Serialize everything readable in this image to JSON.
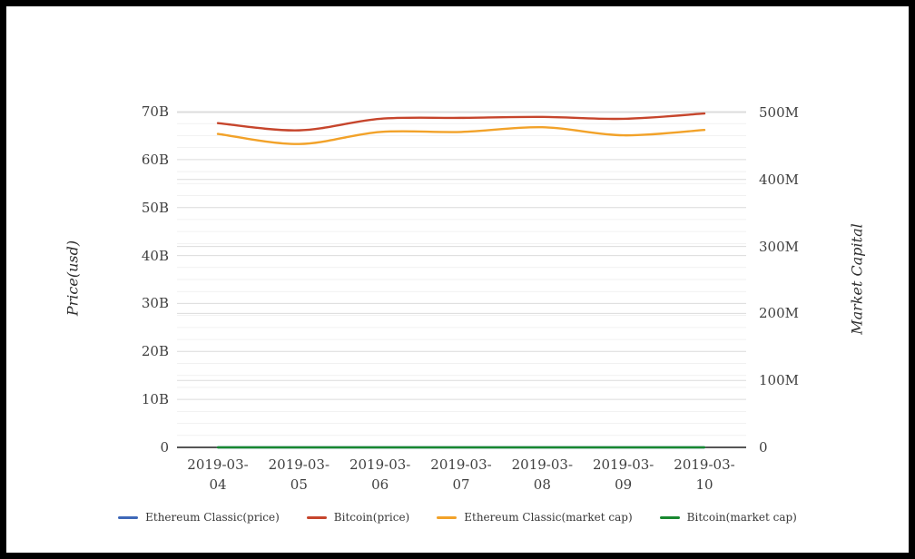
{
  "chart_data": {
    "type": "line",
    "title": "",
    "xlabel": "",
    "ylabel_left": "Price(usd)",
    "ylabel_right": "Market Capital",
    "categories": [
      "2019-03-04",
      "2019-03-05",
      "2019-03-06",
      "2019-03-07",
      "2019-03-08",
      "2019-03-09",
      "2019-03-10"
    ],
    "axes": {
      "left": {
        "title": "Price(usd)",
        "unit": "B",
        "max": 70,
        "ticks": [
          0,
          10,
          20,
          30,
          40,
          50,
          60,
          70
        ],
        "tick_labels": [
          "0",
          "10B",
          "20B",
          "30B",
          "40B",
          "50B",
          "60B",
          "70B"
        ],
        "minor_step": 2.5
      },
      "right": {
        "title": "Market Capital",
        "unit": "M",
        "max": 500,
        "ticks": [
          0,
          100,
          200,
          300,
          400,
          500
        ],
        "tick_labels": [
          "0",
          "100M",
          "200M",
          "300M",
          "400M",
          "500M"
        ]
      }
    },
    "series": [
      {
        "name": "Ethereum Classic(price)",
        "color": "#3e68b8",
        "axis": "left",
        "values": [
          0,
          0,
          0,
          0,
          0,
          0,
          0
        ]
      },
      {
        "name": "Bitcoin(price)",
        "color": "#c6452c",
        "axis": "left",
        "values": [
          67.6,
          66.1,
          68.5,
          68.7,
          68.9,
          68.5,
          69.6
        ]
      },
      {
        "name": "Ethereum Classic(market cap)",
        "color": "#f2a229",
        "axis": "right",
        "values": [
          468,
          453,
          471,
          471,
          478,
          466,
          474
        ]
      },
      {
        "name": "Bitcoin(market cap)",
        "color": "#18882f",
        "axis": "right",
        "values": [
          0,
          0,
          0,
          0,
          0,
          0,
          0
        ]
      }
    ],
    "legend_position": "bottom",
    "grid": true,
    "colors": {
      "grid_major": "#dcdcdc",
      "grid_minor": "#f1f1f1",
      "axis_line": "#1f1f1f",
      "text": "#3f3f3f"
    }
  }
}
